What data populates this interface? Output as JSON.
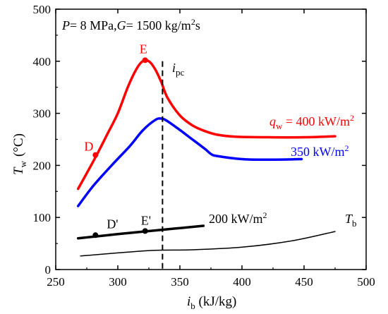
{
  "chart_data": {
    "type": "line",
    "title": "",
    "conditions": {
      "p_symbol": "P",
      "p_text": "= 8 MPa,",
      "g_symbol": "G",
      "g_text": "= 1500 kg/m",
      "g_sup": "2",
      "g_tail": "s"
    },
    "xlabel": {
      "symbol": "i",
      "sub": "b",
      "unit": " (kJ/kg)"
    },
    "ylabel": {
      "symbol": "T",
      "sub": "w",
      "unit": "(°C)"
    },
    "xlim": [
      250,
      500
    ],
    "ylim": [
      0,
      500
    ],
    "xticks": [
      250,
      300,
      350,
      400,
      450,
      500
    ],
    "yticks": [
      0,
      100,
      200,
      300,
      400,
      500
    ],
    "grid": false,
    "series": [
      {
        "name": "q_w = 400 kW/m2",
        "color": "#ff0000",
        "label": {
          "symbol": "q",
          "sub": "w",
          "text": " = 400 kW/m",
          "sup": "2"
        },
        "x": [
          268,
          275,
          283,
          292,
          300,
          308,
          315,
          320,
          325,
          330,
          335,
          340,
          350,
          360,
          370,
          380,
          395,
          420,
          450,
          475
        ],
        "y": [
          155,
          185,
          220,
          262,
          300,
          350,
          385,
          400,
          400,
          385,
          360,
          330,
          296,
          277,
          266,
          259,
          255,
          254,
          254,
          256
        ]
      },
      {
        "name": "350 kW/m2",
        "color": "#0000ff",
        "label": {
          "text": "350 kW/m",
          "sup": "2"
        },
        "x": [
          268,
          280,
          295,
          310,
          320,
          330,
          335,
          340,
          350,
          360,
          370,
          375,
          380,
          400,
          420,
          448
        ],
        "y": [
          122,
          160,
          200,
          238,
          267,
          287,
          290,
          285,
          268,
          250,
          232,
          222,
          218,
          212,
          211,
          212
        ]
      },
      {
        "name": "200 kW/m2",
        "color": "#000000",
        "label": {
          "text": "200 kW/m",
          "sup": "2"
        },
        "x": [
          268,
          300,
          330,
          369
        ],
        "y": [
          60,
          68,
          75,
          84
        ]
      },
      {
        "name": "T_b",
        "color": "#000000",
        "label": {
          "symbol": "T",
          "sub": "b"
        },
        "x": [
          270,
          300,
          330,
          360,
          400,
          440,
          475
        ],
        "y": [
          26,
          32,
          37,
          38,
          43,
          55,
          73
        ]
      }
    ],
    "points": [
      {
        "label": "D",
        "x": 282,
        "y": 220,
        "color": "#ff0000"
      },
      {
        "label": "E",
        "x": 322,
        "y": 402,
        "color": "#ff0000"
      },
      {
        "label": "D'",
        "x": 282,
        "y": 66,
        "color": "#000000"
      },
      {
        "label": "E'",
        "x": 322,
        "y": 74,
        "color": "#000000"
      }
    ],
    "vertical_line": {
      "x": 336,
      "symbol": "i",
      "sub": "pc"
    }
  }
}
